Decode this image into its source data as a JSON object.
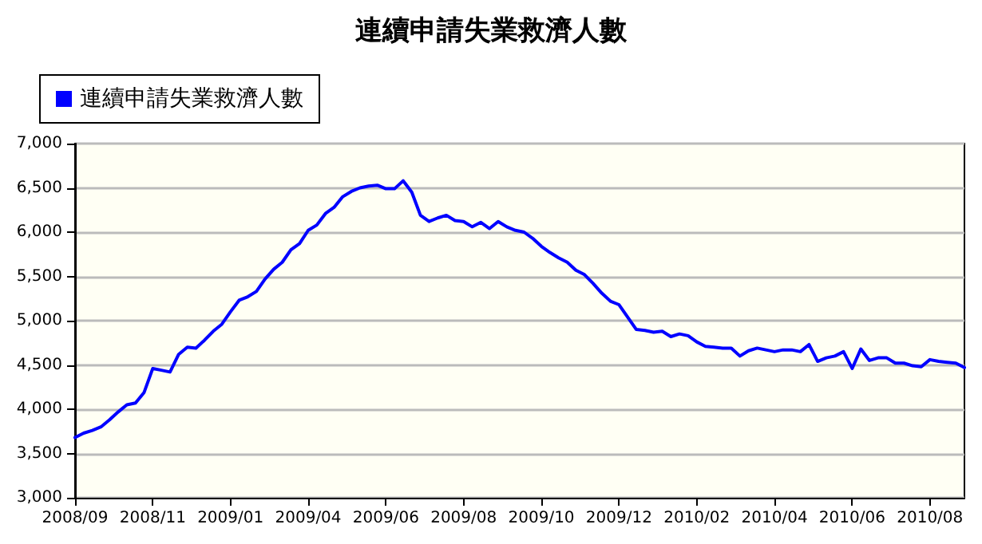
{
  "chart_data": {
    "type": "line",
    "title": "連續申請失業救濟人數",
    "categories": [
      "2008/09",
      null,
      null,
      null,
      null,
      null,
      null,
      null,
      null,
      "2008/11",
      null,
      null,
      null,
      null,
      null,
      null,
      null,
      null,
      "2009/01",
      null,
      null,
      null,
      null,
      null,
      null,
      null,
      null,
      "2009/04",
      null,
      null,
      null,
      null,
      null,
      null,
      null,
      null,
      "2009/06",
      null,
      null,
      null,
      null,
      null,
      null,
      null,
      null,
      "2009/08",
      null,
      null,
      null,
      null,
      null,
      null,
      null,
      null,
      "2009/10",
      null,
      null,
      null,
      null,
      null,
      null,
      null,
      null,
      "2009/12",
      null,
      null,
      null,
      null,
      null,
      null,
      null,
      null,
      "2010/02",
      null,
      null,
      null,
      null,
      null,
      null,
      null,
      null,
      "2010/04",
      null,
      null,
      null,
      null,
      null,
      null,
      null,
      null,
      "2010/06",
      null,
      null,
      null,
      null,
      null,
      null,
      null,
      null,
      "2010/08",
      null,
      null,
      null,
      null
    ],
    "series": [
      {
        "name": "連續申請失業救濟人數",
        "color": "#0000ff",
        "values": [
          3680,
          3730,
          3760,
          3800,
          3880,
          3970,
          4050,
          4070,
          4190,
          4460,
          4440,
          4420,
          4620,
          4700,
          4690,
          4780,
          4880,
          4960,
          5100,
          5230,
          5270,
          5330,
          5470,
          5580,
          5660,
          5800,
          5870,
          6020,
          6080,
          6210,
          6280,
          6400,
          6460,
          6500,
          6520,
          6530,
          6490,
          6490,
          6580,
          6450,
          6190,
          6120,
          6160,
          6190,
          6130,
          6120,
          6060,
          6110,
          6040,
          6120,
          6060,
          6020,
          6000,
          5930,
          5840,
          5770,
          5710,
          5660,
          5570,
          5520,
          5420,
          5310,
          5220,
          5180,
          5040,
          4900,
          4890,
          4870,
          4880,
          4820,
          4850,
          4830,
          4760,
          4710,
          4700,
          4690,
          4690,
          4600,
          4660,
          4690,
          4670,
          4650,
          4670,
          4670,
          4650,
          4730,
          4540,
          4580,
          4600,
          4650,
          4460,
          4680,
          4550,
          4580,
          4580,
          4520,
          4520,
          4490,
          4480,
          4560,
          4540,
          4530,
          4520,
          4470
        ]
      }
    ],
    "ylim": [
      3000,
      7000
    ],
    "yticks": [
      {
        "value": 3000,
        "label": "3,000"
      },
      {
        "value": 3500,
        "label": "3,500"
      },
      {
        "value": 4000,
        "label": "4,000"
      },
      {
        "value": 4500,
        "label": "4,500"
      },
      {
        "value": 5000,
        "label": "5,000"
      },
      {
        "value": 5500,
        "label": "5,500"
      },
      {
        "value": 6000,
        "label": "6,000"
      },
      {
        "value": 6500,
        "label": "6,500"
      },
      {
        "value": 7000,
        "label": "7,000"
      }
    ],
    "grid": "y",
    "legend": "top left",
    "marker": "none",
    "line_style": "solid"
  }
}
